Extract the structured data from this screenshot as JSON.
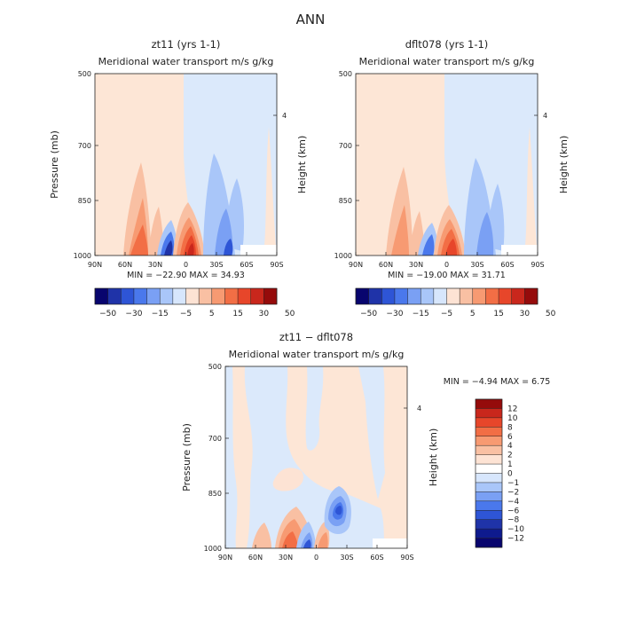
{
  "page_title": "ANN",
  "chart_data": [
    {
      "type": "heatmap",
      "title": "zt11 (yrs 1-1)",
      "subtitle": "Meridional water transport m/s g/kg",
      "xlabel": "",
      "ylabel": "Pressure (mb)",
      "ylabel_right": "Height (km)",
      "x_ticks": [
        "90N",
        "60N",
        "30N",
        "0",
        "30S",
        "60S",
        "90S"
      ],
      "y_ticks": [
        "500",
        "700",
        "850",
        "1000"
      ],
      "y_ticks_right": [
        "4"
      ],
      "min_max_text": "MIN = −22.90   MAX =   34.93",
      "colorbar_labels": [
        "−50",
        "−30",
        "−15",
        "−5",
        "5",
        "15",
        "30",
        "50"
      ]
    },
    {
      "type": "heatmap",
      "title": "dflt078 (yrs 1-1)",
      "subtitle": "Meridional water transport m/s g/kg",
      "xlabel": "",
      "ylabel": "",
      "ylabel_right": "Height (km)",
      "x_ticks": [
        "90N",
        "60N",
        "30N",
        "0",
        "30S",
        "60S",
        "90S"
      ],
      "y_ticks": [
        "500",
        "700",
        "850",
        "1000"
      ],
      "y_ticks_right": [
        "4"
      ],
      "min_max_text": "MIN = −19.00   MAX =   31.71",
      "colorbar_labels": [
        "−50",
        "−30",
        "−15",
        "−5",
        "5",
        "15",
        "30",
        "50"
      ]
    },
    {
      "type": "heatmap",
      "title": "zt11 − dflt078",
      "subtitle": "Meridional water transport m/s g/kg",
      "xlabel": "",
      "ylabel": "Pressure (mb)",
      "ylabel_right": "Height (km)",
      "x_ticks": [
        "90N",
        "60N",
        "30N",
        "0",
        "30S",
        "60S",
        "90S"
      ],
      "y_ticks": [
        "500",
        "700",
        "850",
        "1000"
      ],
      "y_ticks_right": [
        "4"
      ],
      "min_max_text": "MIN =   −4.94   MAX =    6.75",
      "colorbar_labels": [
        "12",
        "10",
        "8",
        "6",
        "4",
        "2",
        "1",
        "0",
        "−1",
        "−2",
        "−4",
        "−6",
        "−8",
        "−10",
        "−12"
      ]
    }
  ],
  "colors": {
    "diverging": [
      "#08056e",
      "#1f33a8",
      "#2e55d6",
      "#4a78ec",
      "#7aa0f4",
      "#a9c6f9",
      "#d7e6fc",
      "#fde3d4",
      "#f9c0a3",
      "#f79a72",
      "#f26e45",
      "#e7462a",
      "#c9271c",
      "#950b0b"
    ],
    "light_blue_fill": "#dbe9fb",
    "light_orange_fill": "#fde6d6"
  }
}
